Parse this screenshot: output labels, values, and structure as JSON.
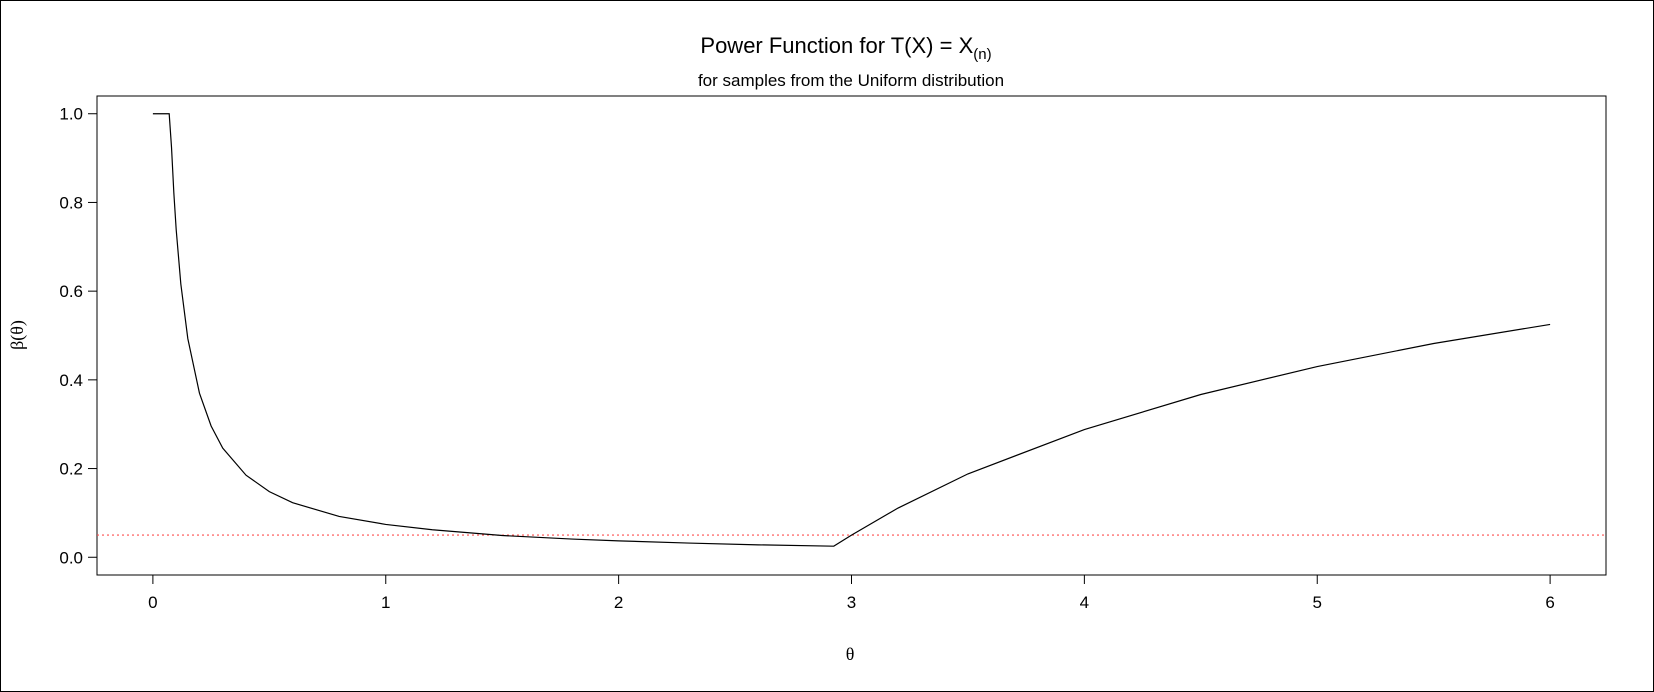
{
  "chart_data": {
    "type": "line",
    "title": {
      "prefix": "Power Function for T(X) = X",
      "subscript": "(n)"
    },
    "subtitle": "for samples from the Uniform distribution",
    "xlabel": "θ",
    "ylabel": "β(θ)",
    "xlim": [
      -0.24,
      6.24
    ],
    "ylim": [
      -0.04,
      1.04
    ],
    "x_ticks": [
      0,
      1,
      2,
      3,
      4,
      5,
      6
    ],
    "x_tick_labels": [
      "0",
      "1",
      "2",
      "3",
      "4",
      "5",
      "6"
    ],
    "y_ticks": [
      0.0,
      0.2,
      0.4,
      0.6,
      0.8,
      1.0
    ],
    "y_tick_labels": [
      "0.0",
      "0.2",
      "0.4",
      "0.6",
      "0.8",
      "1.0"
    ],
    "grid": false,
    "series": [
      {
        "color": "#000000",
        "x": [
          0,
          0.07,
          0.08,
          0.09,
          0.1,
          0.12,
          0.15,
          0.2,
          0.25,
          0.3,
          0.4,
          0.5,
          0.6,
          0.8,
          1.0,
          1.2,
          1.5,
          1.8,
          2.0,
          2.3,
          2.6,
          2.924,
          3.0,
          3.2,
          3.5,
          4.0,
          4.5,
          5.0,
          5.5,
          6.0
        ],
        "y": [
          1.0,
          1.0,
          0.924,
          0.821,
          0.739,
          0.616,
          0.493,
          0.37,
          0.296,
          0.246,
          0.185,
          0.148,
          0.123,
          0.092,
          0.074,
          0.062,
          0.049,
          0.041,
          0.037,
          0.032,
          0.028,
          0.025,
          0.05,
          0.111,
          0.188,
          0.288,
          0.367,
          0.43,
          0.482,
          0.525
        ]
      }
    ],
    "reference_line": {
      "y": 0.05,
      "color": "#ff4d4d",
      "style": "dotted"
    }
  }
}
